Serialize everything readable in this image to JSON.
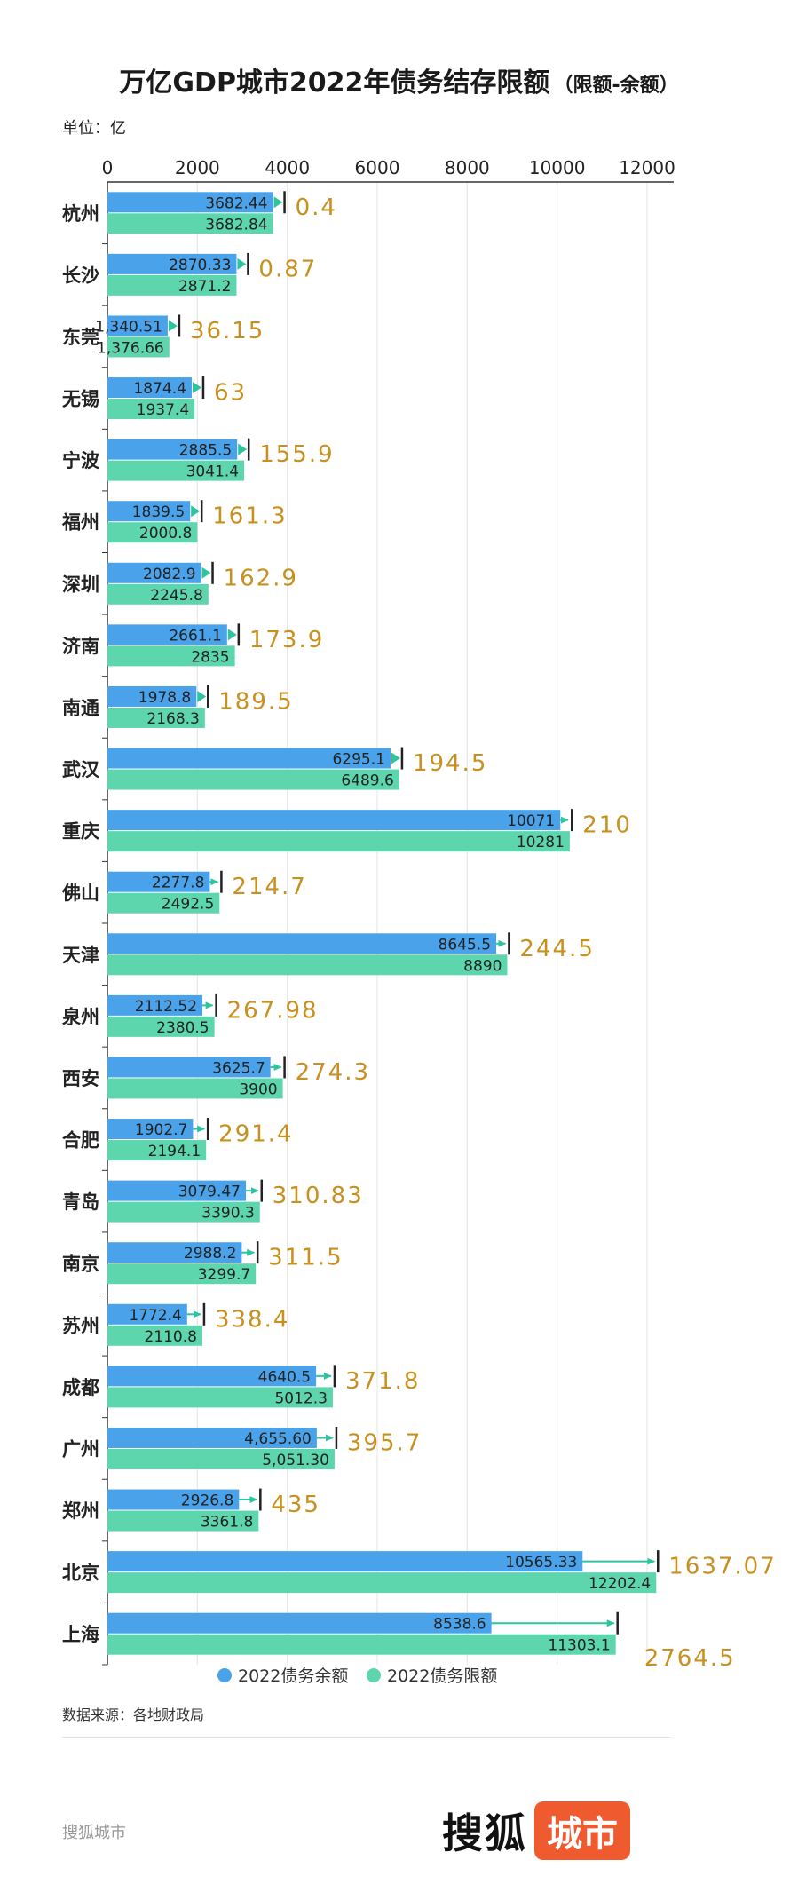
{
  "page": {
    "title": "万亿GDP城市2022年债务结存限额",
    "subtitle": "（限额-余额）",
    "unit": "单位：亿",
    "source": "数据来源：各地财政局",
    "footer_text": "搜狐城市",
    "logo_text_a": "搜狐",
    "logo_text_b": "城市"
  },
  "chart_data": {
    "type": "bar",
    "orientation": "horizontal",
    "xlim": [
      0,
      12000
    ],
    "xticks": [
      "0",
      "2000",
      "4000",
      "6000",
      "8000",
      "10000",
      "12000"
    ],
    "grid": true,
    "legend_position": "bottom",
    "categories": [
      "杭州",
      "长沙",
      "东莞",
      "无锡",
      "宁波",
      "福州",
      "深圳",
      "济南",
      "南通",
      "武汉",
      "重庆",
      "佛山",
      "天津",
      "泉州",
      "西安",
      "合肥",
      "青岛",
      "南京",
      "苏州",
      "成都",
      "广州",
      "郑州",
      "北京",
      "上海"
    ],
    "series": [
      {
        "name": "2022债务余额",
        "color": "#4aa3ea",
        "values": [
          3682.44,
          2870.33,
          1340.51,
          1874.4,
          2885.5,
          1839.5,
          2082.9,
          2661.1,
          1978.8,
          6295.1,
          10071,
          2277.8,
          8645.5,
          2112.52,
          3625.7,
          1902.7,
          3079.47,
          2988.2,
          1772.4,
          4640.5,
          4655.6,
          2926.8,
          10565.33,
          8538.6
        ],
        "labels": [
          "3682.44",
          "2870.33",
          "1,340.51",
          "1874.4",
          "2885.5",
          "1839.5",
          "2082.9",
          "2661.1",
          "1978.8",
          "6295.1",
          "10071",
          "2277.8",
          "8645.5",
          "2112.52",
          "3625.7",
          "1902.7",
          "3079.47",
          "2988.2",
          "1772.4",
          "4640.5",
          "4,655.60",
          "2926.8",
          "10565.33",
          "8538.6"
        ]
      },
      {
        "name": "2022债务限额",
        "color": "#5ed6ad",
        "values": [
          3682.84,
          2871.2,
          1376.66,
          1937.4,
          3041.4,
          2000.8,
          2245.8,
          2835,
          2168.3,
          6489.6,
          10281,
          2492.5,
          8890,
          2380.5,
          3900,
          2194.1,
          3390.3,
          3299.7,
          2110.8,
          5012.3,
          5051.3,
          3361.8,
          12202.4,
          11303.1
        ],
        "labels": [
          "3682.84",
          "2871.2",
          "1,376.66",
          "1937.4",
          "3041.4",
          "2000.8",
          "2245.8",
          "2835",
          "2168.3",
          "6489.6",
          "10281",
          "2492.5",
          "8890",
          "2380.5",
          "3900",
          "2194.1",
          "3390.3",
          "3299.7",
          "2110.8",
          "5012.3",
          "5,051.30",
          "3361.8",
          "12202.4",
          "11303.1"
        ]
      }
    ],
    "differences": [
      "0.4",
      "0.87",
      "36.15",
      "63",
      "155.9",
      "161.3",
      "162.9",
      "173.9",
      "189.5",
      "194.5",
      "210",
      "214.7",
      "244.5",
      "267.98",
      "274.3",
      "291.4",
      "310.83",
      "311.5",
      "338.4",
      "371.8",
      "395.7",
      "435",
      "1637.07",
      "2764.5"
    ],
    "difference_color": "#c8901e",
    "arrow_color": "#2ec4a0"
  }
}
